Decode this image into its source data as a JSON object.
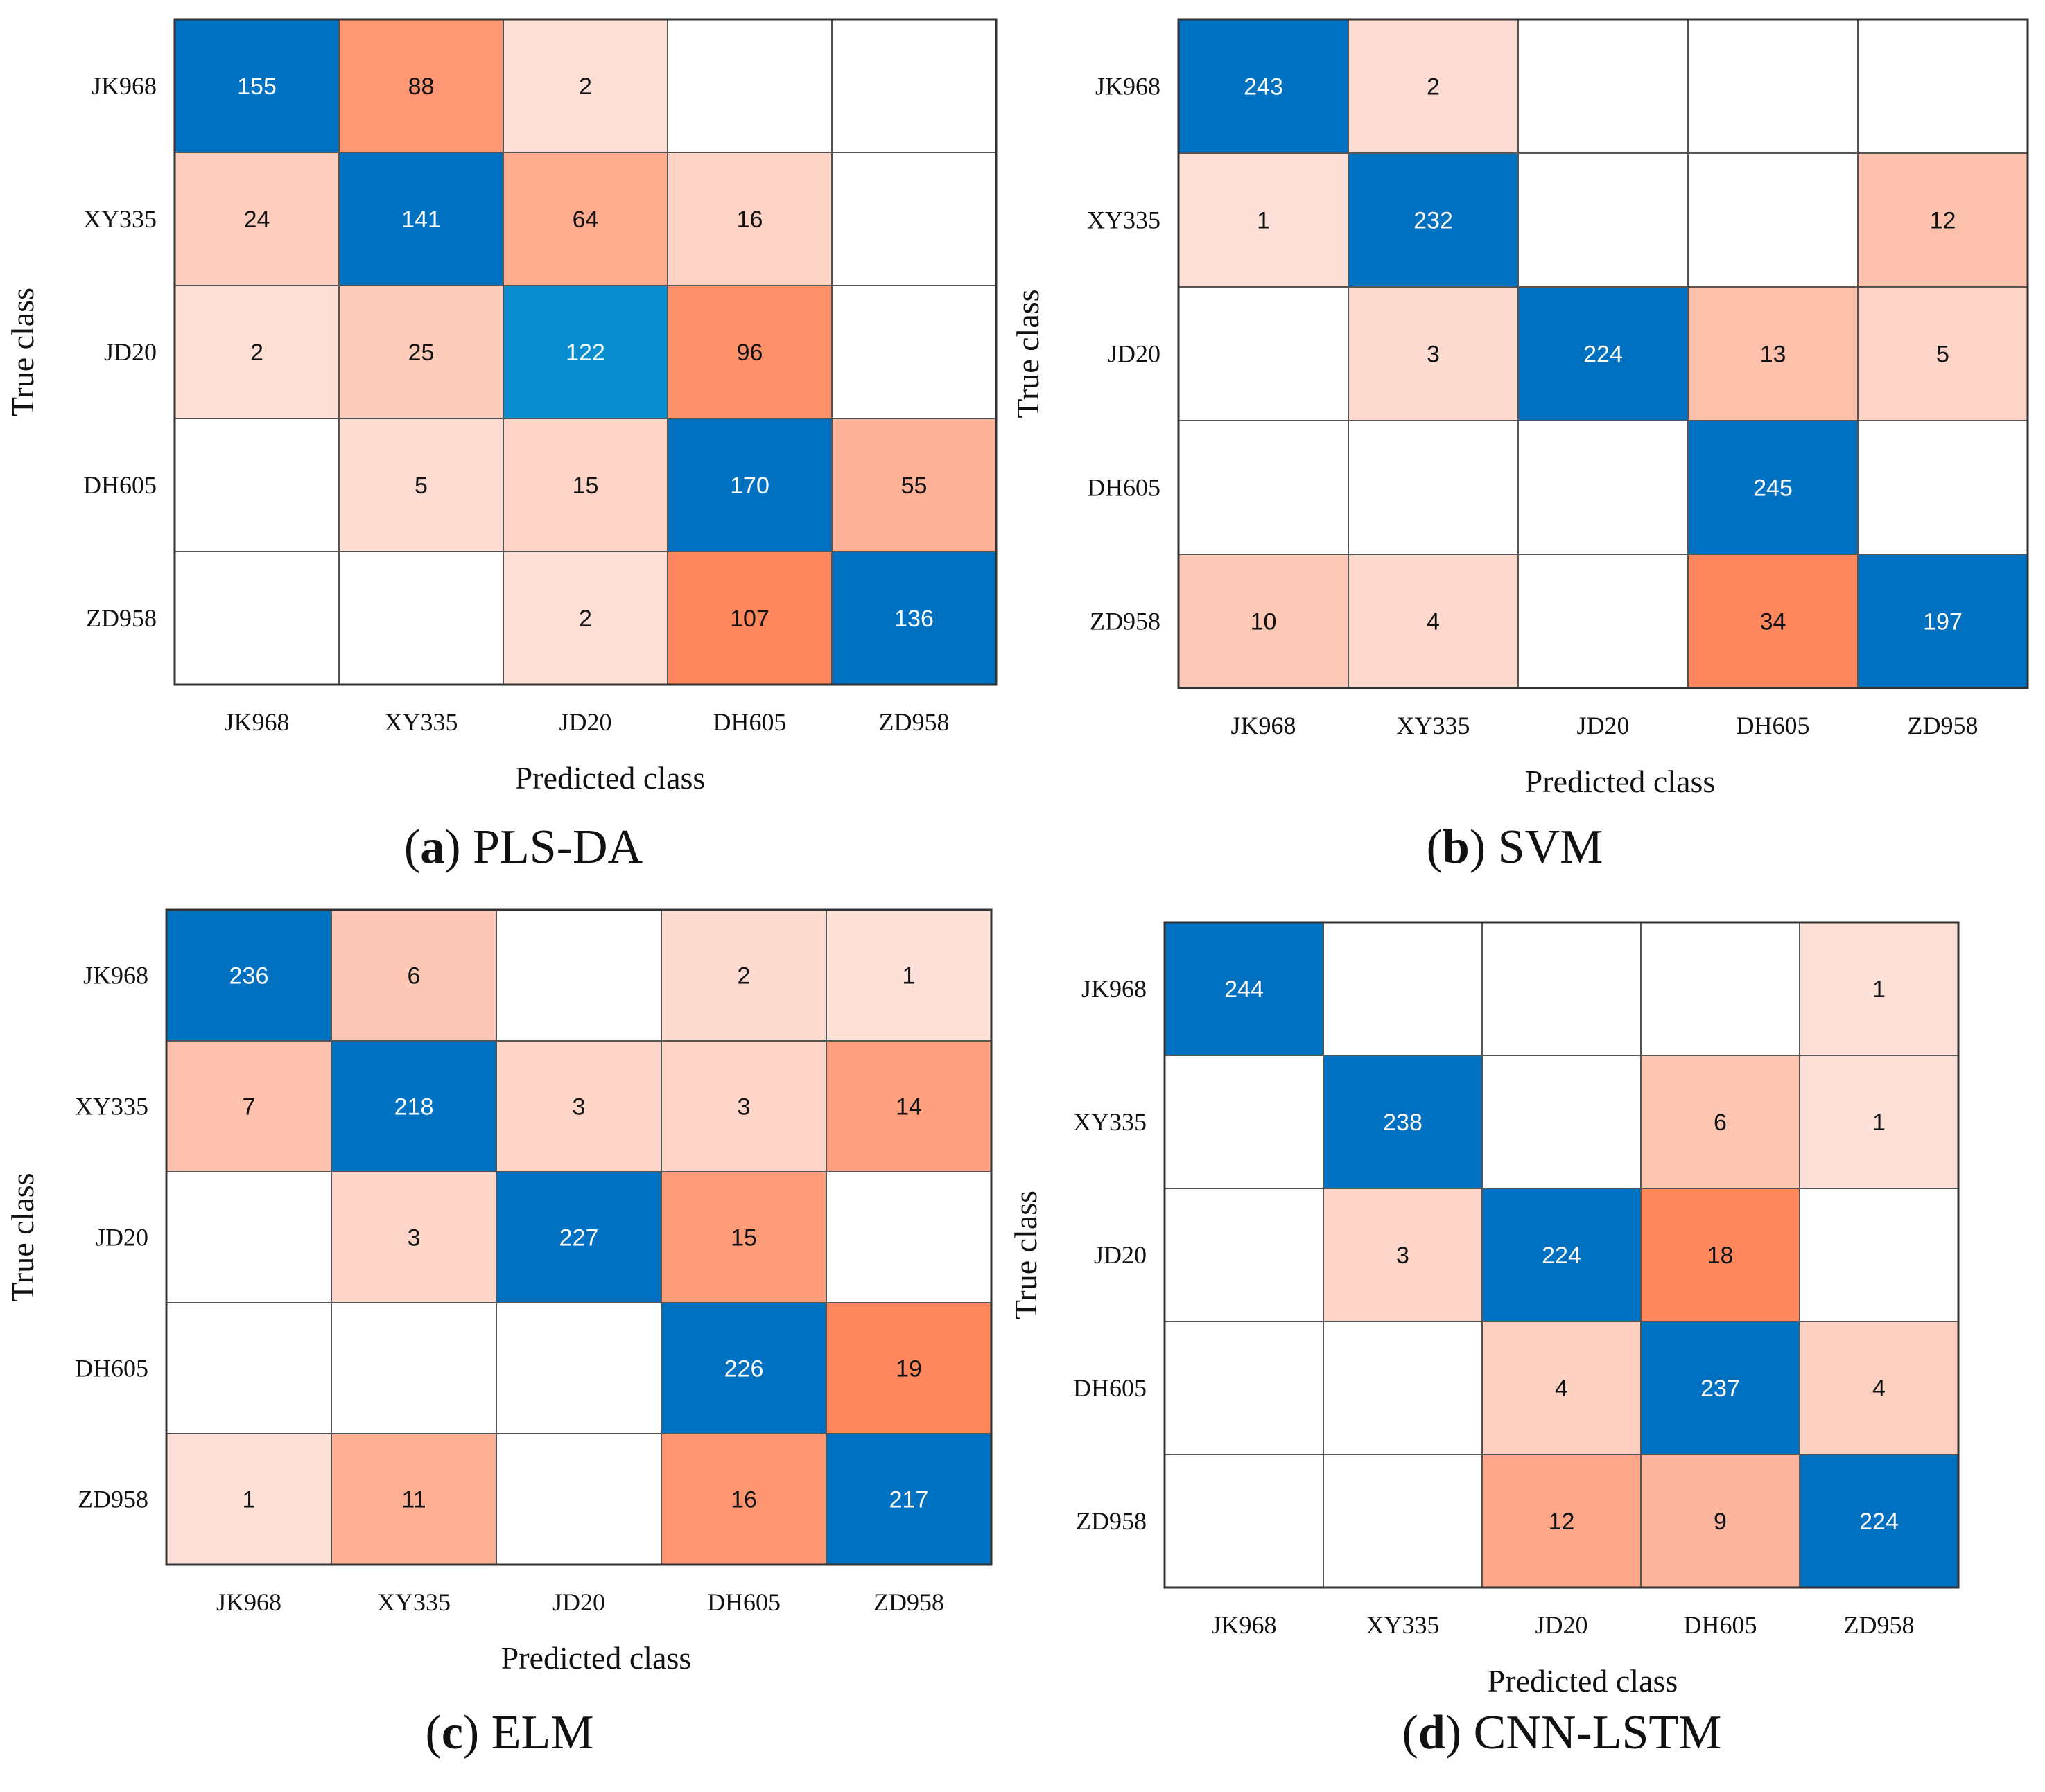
{
  "chart_data": [
    {
      "type": "heatmap",
      "panel_letter": "a",
      "panel_title": "PLS-DA",
      "xlabel": "Predicted class",
      "ylabel": "True class",
      "row_labels": [
        "JK968",
        "XY335",
        "JD20",
        "DH605",
        "ZD958"
      ],
      "col_labels": [
        "JK968",
        "XY335",
        "JD20",
        "DH605",
        "ZD958"
      ],
      "values": [
        [
          155,
          88,
          2,
          null,
          null
        ],
        [
          24,
          141,
          64,
          16,
          null
        ],
        [
          2,
          25,
          122,
          96,
          null
        ],
        [
          null,
          5,
          15,
          170,
          55
        ],
        [
          null,
          null,
          2,
          107,
          136
        ]
      ]
    },
    {
      "type": "heatmap",
      "panel_letter": "b",
      "panel_title": "SVM",
      "xlabel": "Predicted class",
      "ylabel": "True class",
      "row_labels": [
        "JK968",
        "XY335",
        "JD20",
        "DH605",
        "ZD958"
      ],
      "col_labels": [
        "JK968",
        "XY335",
        "JD20",
        "DH605",
        "ZD958"
      ],
      "values": [
        [
          243,
          2,
          null,
          null,
          null
        ],
        [
          1,
          232,
          null,
          null,
          12
        ],
        [
          null,
          3,
          224,
          13,
          5
        ],
        [
          null,
          null,
          null,
          245,
          null
        ],
        [
          10,
          4,
          null,
          34,
          197
        ]
      ]
    },
    {
      "type": "heatmap",
      "panel_letter": "c",
      "panel_title": "ELM",
      "xlabel": "Predicted class",
      "ylabel": "True class",
      "row_labels": [
        "JK968",
        "XY335",
        "JD20",
        "DH605",
        "ZD958"
      ],
      "col_labels": [
        "JK968",
        "XY335",
        "JD20",
        "DH605",
        "ZD958"
      ],
      "values": [
        [
          236,
          6,
          null,
          2,
          1
        ],
        [
          7,
          218,
          3,
          3,
          14
        ],
        [
          null,
          3,
          227,
          15,
          null
        ],
        [
          null,
          null,
          null,
          226,
          19
        ],
        [
          1,
          11,
          null,
          16,
          217
        ]
      ]
    },
    {
      "type": "heatmap",
      "panel_letter": "d",
      "panel_title": "CNN-LSTM",
      "xlabel": "Predicted class",
      "ylabel": "True class",
      "row_labels": [
        "JK968",
        "XY335",
        "JD20",
        "DH605",
        "ZD958"
      ],
      "col_labels": [
        "JK968",
        "XY335",
        "JD20",
        "DH605",
        "ZD958"
      ],
      "values": [
        [
          244,
          null,
          null,
          null,
          1
        ],
        [
          null,
          238,
          null,
          6,
          1
        ],
        [
          null,
          3,
          224,
          18,
          null
        ],
        [
          null,
          null,
          4,
          237,
          4
        ],
        [
          null,
          null,
          12,
          9,
          224
        ]
      ]
    }
  ],
  "colors": {
    "diag_dark": "#0070c0",
    "diag_light": "#0a8ed0",
    "off_high": "#fe875d",
    "off_low": "#fde0d7",
    "grid": "#555555",
    "text": "#111111"
  }
}
